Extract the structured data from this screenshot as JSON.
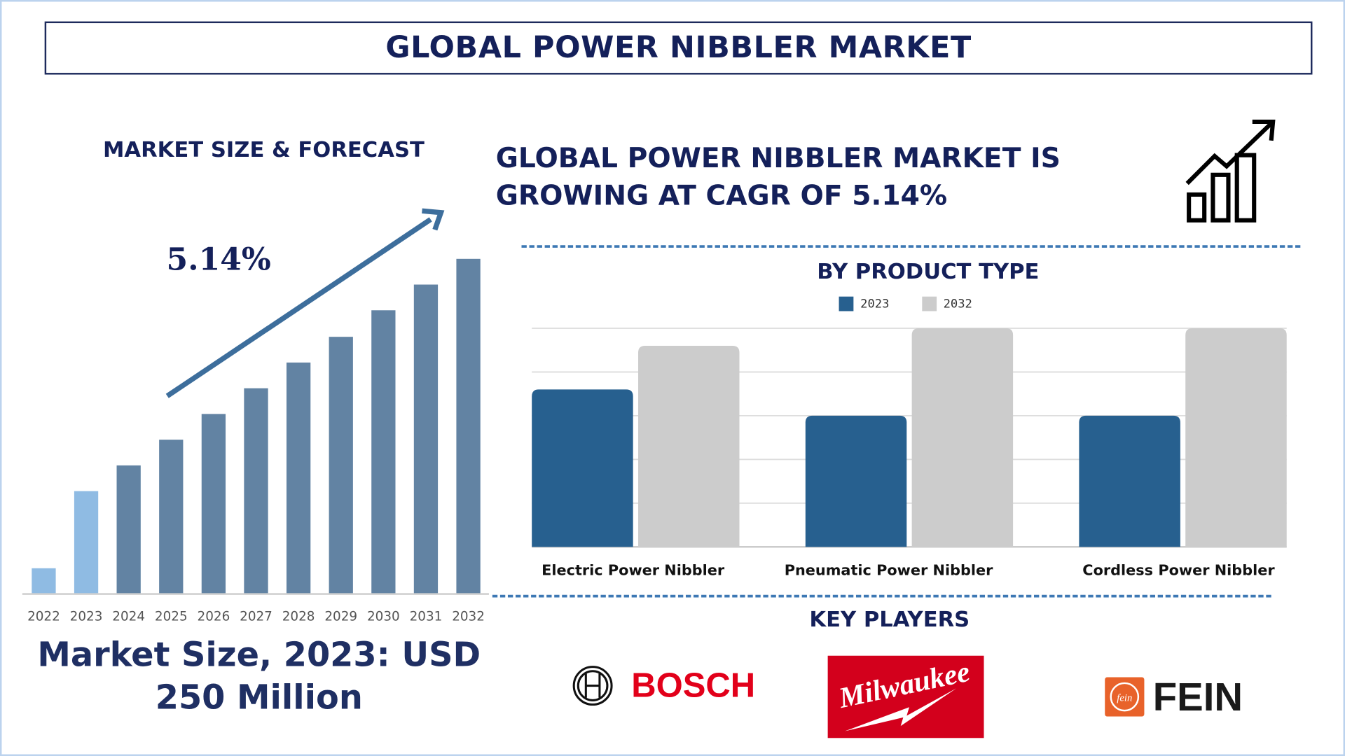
{
  "header": {
    "title": "GLOBAL POWER NIBBLER MARKET"
  },
  "left_panel": {
    "heading": "MARKET SIZE & FORECAST",
    "cagr_label": "5.14%",
    "market_size_line1": "Market Size, 2023: USD",
    "market_size_line2": "250 Million"
  },
  "right_panel": {
    "headline_line1": "GLOBAL POWER NIBBLER MARKET IS",
    "headline_line2": "GROWING AT CAGR OF 5.14%",
    "icon": "growth-chart-icon",
    "key_players_heading": "KEY PLAYERS",
    "key_players": [
      {
        "name": "BOSCH",
        "color": "#e2001a"
      },
      {
        "name": "Milwaukee",
        "color": "#d3001c"
      },
      {
        "name": "FEIN",
        "color": "#e8622a"
      }
    ]
  },
  "colors": {
    "navy": "#14205a",
    "forecast_bar": "#6283a3",
    "history_bar": "#8fbbe3",
    "series_2023": "#27608f",
    "series_2032": "#cccccc",
    "arrow": "#3d6e9c"
  },
  "chart_data": [
    {
      "type": "bar",
      "title": "MARKET SIZE & FORECAST",
      "categories": [
        "2022",
        "2023",
        "2024",
        "2025",
        "2026",
        "2027",
        "2028",
        "2029",
        "2030",
        "2031",
        "2032"
      ],
      "values": [
        61,
        250,
        313,
        376,
        439,
        502,
        565,
        628,
        693,
        756,
        819
      ],
      "highlighted": [
        "2022",
        "2023"
      ],
      "annotation": "5.14%",
      "xlabel": "",
      "ylabel": "",
      "grid": false
    },
    {
      "type": "bar",
      "title": "BY PRODUCT TYPE",
      "categories": [
        "Electric Power Nibbler",
        "Pneumatic Power Nibbler",
        "Cordless Power Nibbler"
      ],
      "series": [
        {
          "name": "2023",
          "values": [
            3.6,
            3.0,
            3.0
          ]
        },
        {
          "name": "2032",
          "values": [
            4.6,
            5.0,
            5.0
          ]
        }
      ],
      "ylim": [
        0,
        5
      ],
      "grid": true,
      "legend": "top"
    }
  ]
}
